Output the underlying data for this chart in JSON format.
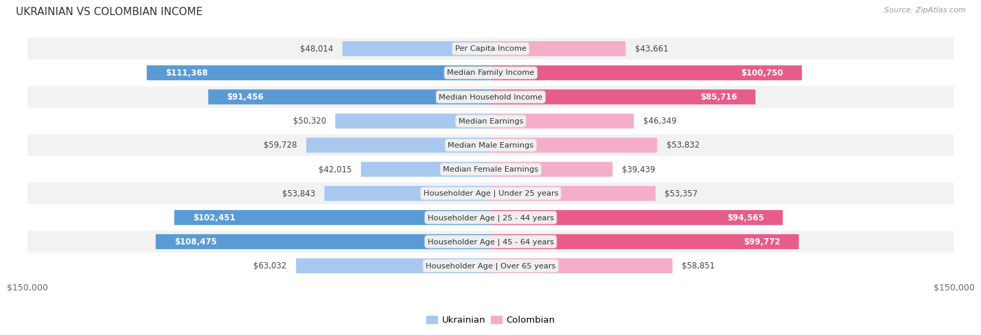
{
  "title": "UKRAINIAN VS COLOMBIAN INCOME",
  "source": "Source: ZipAtlas.com",
  "max_value": 150000,
  "categories": [
    "Per Capita Income",
    "Median Family Income",
    "Median Household Income",
    "Median Earnings",
    "Median Male Earnings",
    "Median Female Earnings",
    "Householder Age | Under 25 years",
    "Householder Age | 25 - 44 years",
    "Householder Age | 45 - 64 years",
    "Householder Age | Over 65 years"
  ],
  "ukrainian_values": [
    48014,
    111368,
    91456,
    50320,
    59728,
    42015,
    53843,
    102451,
    108475,
    63032
  ],
  "colombian_values": [
    43661,
    100750,
    85716,
    46349,
    53832,
    39439,
    53357,
    94565,
    99772,
    58851
  ],
  "ukrainian_labels": [
    "$48,014",
    "$111,368",
    "$91,456",
    "$50,320",
    "$59,728",
    "$42,015",
    "$53,843",
    "$102,451",
    "$108,475",
    "$63,032"
  ],
  "colombian_labels": [
    "$43,661",
    "$100,750",
    "$85,716",
    "$46,349",
    "$53,832",
    "$39,439",
    "$53,357",
    "$94,565",
    "$99,772",
    "$58,851"
  ],
  "ukrainian_color_light": "#A8C8F0",
  "ukrainian_color_dark": "#5B9BD5",
  "colombian_color_light": "#F4AECA",
  "colombian_color_dark": "#E85C8A",
  "bg_color": "#ffffff",
  "row_bg_even": "#f2f2f2",
  "row_bg_odd": "#ffffff",
  "legend_ukrainian": "Ukrainian",
  "legend_colombian": "Colombian",
  "xlabel_left": "$150,000",
  "xlabel_right": "$150,000",
  "large_threshold": 65000,
  "bar_height": 0.62
}
